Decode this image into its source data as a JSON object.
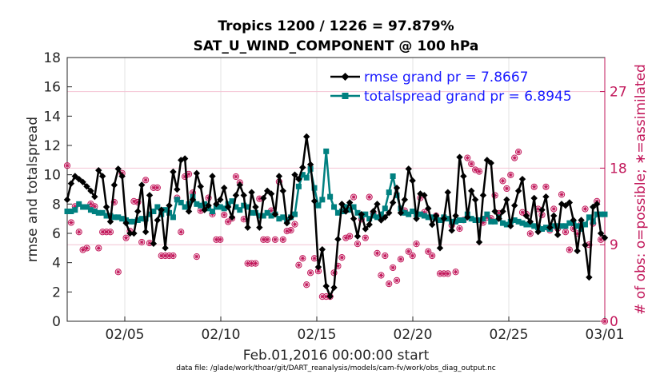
{
  "chart_data": {
    "type": "line",
    "title": "Tropics 1200 / 1226 = 97.879%",
    "subtitle": "SAT_U_WIND_COMPONENT @ 100 hPa",
    "xlabel": "Feb.01,2016 00:00:00 start",
    "ylabel": "rmse and totalspread",
    "ylabel_right": "# of obs: o=possible; ∗=assimilated",
    "footnote": "data file: /glade/work/thoar/git/DART_reanalysis/models/cam-fv/work/obs_diag_output.nc",
    "xlim": [
      1,
      29
    ],
    "ylim": [
      0,
      18
    ],
    "ylim_right": [
      0,
      31
    ],
    "x_ticks": [
      4,
      9,
      14,
      19,
      24,
      29
    ],
    "x_tick_labels": [
      "02/05",
      "02/10",
      "02/15",
      "02/20",
      "02/25",
      "03/01"
    ],
    "y_ticks": [
      0,
      2,
      4,
      6,
      8,
      10,
      12,
      14,
      16,
      18
    ],
    "y_ticks_right": [
      0,
      9,
      18,
      27
    ],
    "legend_position": "top-right",
    "colors": {
      "rmse": "#000000",
      "spread": "#008080",
      "obs": "#c2185b",
      "legend_text": "#1a1aff",
      "grid_right": "#f4c4d4"
    },
    "series": [
      {
        "name": "rmse",
        "legend": "rmse grand pr = 7.8667",
        "values": [
          8.3,
          9.4,
          9.9,
          9.7,
          9.5,
          9.2,
          8.9,
          8.5,
          10.3,
          9.9,
          7.8,
          6.8,
          9.3,
          10.4,
          9.9,
          6.7,
          6.0,
          6.0,
          7.5,
          9.3,
          6.1,
          8.6,
          5.3,
          6.9,
          7.6,
          5.0,
          7.9,
          10.2,
          9.0,
          11.0,
          11.1,
          7.5,
          8.3,
          10.1,
          9.2,
          7.6,
          7.9,
          9.9,
          8.0,
          8.3,
          9.1,
          7.8,
          7.1,
          8.6,
          9.3,
          8.6,
          6.4,
          8.8,
          7.8,
          6.4,
          8.4,
          8.9,
          8.7,
          7.3,
          9.9,
          8.9,
          6.7,
          7.1,
          10.0,
          9.7,
          10.5,
          12.6,
          10.7,
          8.2,
          3.7,
          4.9,
          2.4,
          1.7,
          2.3,
          5.6,
          8.0,
          7.5,
          8.1,
          7.0,
          5.8,
          7.3,
          6.3,
          6.6,
          7.5,
          8.0,
          6.9,
          7.1,
          7.4,
          8.1,
          9.1,
          7.4,
          8.3,
          10.4,
          9.6,
          7.0,
          8.7,
          8.6,
          7.7,
          6.6,
          7.2,
          5.0,
          7.0,
          8.8,
          6.2,
          7.2,
          11.2,
          9.9,
          7.1,
          8.9,
          8.3,
          5.4,
          8.6,
          11.0,
          10.8,
          7.5,
          7.0,
          7.5,
          8.3,
          6.5,
          7.9,
          8.9,
          9.7,
          7.2,
          6.8,
          8.4,
          6.1,
          7.6,
          8.5,
          6.4,
          7.2,
          5.9,
          8.0,
          7.9,
          8.1,
          6.9,
          4.8,
          6.9,
          5.2,
          3.0,
          7.8,
          8.0,
          6.0,
          5.7
        ]
      },
      {
        "name": "totalspread",
        "legend": "totalspread grand pr = 6.8945",
        "values": [
          7.5,
          7.5,
          7.6,
          8.0,
          7.8,
          7.8,
          7.6,
          7.5,
          7.4,
          7.4,
          7.2,
          7.2,
          7.1,
          7.1,
          7.0,
          6.9,
          6.8,
          6.8,
          6.9,
          7.0,
          7.0,
          7.3,
          7.5,
          7.8,
          7.3,
          7.6,
          7.4,
          7.1,
          8.3,
          8.1,
          7.8,
          8.0,
          8.5,
          8.0,
          7.9,
          8.0,
          7.7,
          7.5,
          7.8,
          7.8,
          7.7,
          8.0,
          8.2,
          7.8,
          7.6,
          7.9,
          7.8,
          7.4,
          7.4,
          7.2,
          7.2,
          7.4,
          7.2,
          7.3,
          7.0,
          7.1,
          6.9,
          7.1,
          7.3,
          9.2,
          10.0,
          9.8,
          10.4,
          9.1,
          7.9,
          8.3,
          11.6,
          8.5,
          7.8,
          7.4,
          7.5,
          7.8,
          7.6,
          7.8,
          7.4,
          7.2,
          7.3,
          7.0,
          7.2,
          7.1,
          7.3,
          7.7,
          8.8,
          9.9,
          8.6,
          7.7,
          7.4,
          7.3,
          7.5,
          7.3,
          7.3,
          7.2,
          7.1,
          7.1,
          7.0,
          6.9,
          7.1,
          7.0,
          6.8,
          6.8,
          6.9,
          6.9,
          7.3,
          7.0,
          6.9,
          6.9,
          7.0,
          7.3,
          6.8,
          6.8,
          7.1,
          6.7,
          6.6,
          6.8,
          6.9,
          6.8,
          6.7,
          6.6,
          6.6,
          6.5,
          6.4,
          6.3,
          6.4,
          6.3,
          6.5,
          6.5,
          6.5,
          6.5,
          6.7,
          6.7,
          6.5,
          6.3,
          6.6,
          7.1,
          6.8,
          7.3,
          7.3,
          7.3
        ]
      }
    ],
    "obs_possible_label": "o=possible",
    "obs_assimilated_label": "∗=assimilated",
    "obs_counts": [
      18.3,
      11.6,
      13.5,
      10.5,
      8.4,
      8.6,
      13.8,
      13.5,
      8.6,
      10.5,
      10.5,
      10.5,
      14.0,
      5.8,
      17.4,
      9.8,
      10.6,
      14.1,
      14.0,
      9.3,
      16.6,
      9.2,
      15.7,
      15.7,
      7.7,
      7.7,
      7.7,
      7.7,
      14.5,
      10.5,
      17.0,
      17.3,
      15.1,
      7.6,
      13.0,
      13.5,
      14.5,
      12.6,
      9.6,
      9.6,
      12.5,
      11.7,
      12.1,
      17.0,
      16.3,
      12.0,
      6.8,
      6.8,
      6.8,
      14.4,
      9.6,
      9.6,
      13.0,
      9.6,
      16.4,
      9.6,
      10.6,
      10.7,
      11.4,
      6.6,
      7.4,
      4.3,
      5.7,
      7.4,
      5.9,
      2.9,
      2.9,
      2.9,
      5.7,
      6.5,
      7.5,
      9.8,
      10.0,
      14.6,
      9.1,
      12.0,
      9.8,
      14.6,
      12.7,
      8.0,
      5.4,
      7.7,
      4.4,
      6.3,
      4.8,
      7.3,
      13.0,
      8.2,
      7.7,
      9.1,
      14.5,
      12.8,
      8.2,
      7.7,
      12.4,
      5.6,
      5.6,
      5.6,
      11.3,
      5.8,
      10.9,
      11.9,
      19.2,
      18.5,
      17.8,
      17.6,
      11.6,
      12.2,
      12.1,
      14.8,
      12.7,
      16.5,
      15.6,
      17.2,
      19.2,
      19.9,
      12.8,
      12.6,
      10.3,
      15.8,
      13.2,
      12.5,
      15.8,
      10.7,
      13.2,
      10.9,
      14.9,
      10.5,
      8.4,
      10.9,
      10.3,
      11.4,
      13.2,
      9.0,
      11.5,
      14.1,
      9.6,
      0.0
    ]
  }
}
